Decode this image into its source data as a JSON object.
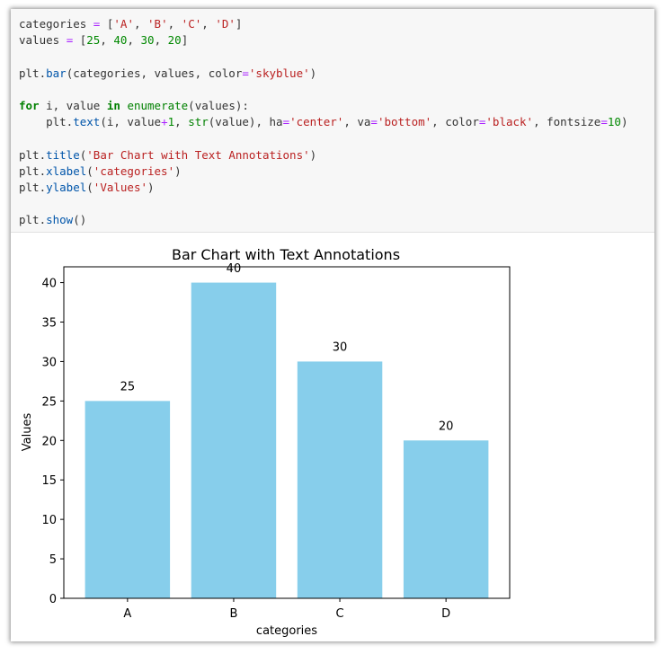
{
  "code": {
    "lines": [
      [
        {
          "t": "categories "
        },
        {
          "t": "=",
          "c": "op"
        },
        {
          "t": " ["
        },
        {
          "t": "'A'",
          "c": "str"
        },
        {
          "t": ", "
        },
        {
          "t": "'B'",
          "c": "str"
        },
        {
          "t": ", "
        },
        {
          "t": "'C'",
          "c": "str"
        },
        {
          "t": ", "
        },
        {
          "t": "'D'",
          "c": "str"
        },
        {
          "t": "]"
        }
      ],
      [
        {
          "t": "values "
        },
        {
          "t": "=",
          "c": "op"
        },
        {
          "t": " ["
        },
        {
          "t": "25",
          "c": "num"
        },
        {
          "t": ", "
        },
        {
          "t": "40",
          "c": "num"
        },
        {
          "t": ", "
        },
        {
          "t": "30",
          "c": "num"
        },
        {
          "t": ", "
        },
        {
          "t": "20",
          "c": "num"
        },
        {
          "t": "]"
        }
      ],
      [],
      [
        {
          "t": "plt."
        },
        {
          "t": "bar",
          "c": "fn"
        },
        {
          "t": "(categories, values, color"
        },
        {
          "t": "=",
          "c": "op"
        },
        {
          "t": "'skyblue'",
          "c": "str"
        },
        {
          "t": ")"
        }
      ],
      [],
      [
        {
          "t": "for",
          "c": "kw"
        },
        {
          "t": " i, value "
        },
        {
          "t": "in",
          "c": "kw"
        },
        {
          "t": " "
        },
        {
          "t": "enumerate",
          "c": "bi"
        },
        {
          "t": "(values):"
        }
      ],
      [
        {
          "t": "    plt."
        },
        {
          "t": "text",
          "c": "fn"
        },
        {
          "t": "(i, value"
        },
        {
          "t": "+",
          "c": "op"
        },
        {
          "t": "1",
          "c": "num"
        },
        {
          "t": ", "
        },
        {
          "t": "str",
          "c": "bi"
        },
        {
          "t": "(value), ha"
        },
        {
          "t": "=",
          "c": "op"
        },
        {
          "t": "'center'",
          "c": "str"
        },
        {
          "t": ", va"
        },
        {
          "t": "=",
          "c": "op"
        },
        {
          "t": "'bottom'",
          "c": "str"
        },
        {
          "t": ", color"
        },
        {
          "t": "=",
          "c": "op"
        },
        {
          "t": "'black'",
          "c": "str"
        },
        {
          "t": ", fontsize"
        },
        {
          "t": "=",
          "c": "op"
        },
        {
          "t": "10",
          "c": "num"
        },
        {
          "t": ")"
        }
      ],
      [],
      [
        {
          "t": "plt."
        },
        {
          "t": "title",
          "c": "fn"
        },
        {
          "t": "("
        },
        {
          "t": "'Bar Chart with Text Annotations'",
          "c": "str"
        },
        {
          "t": ")"
        }
      ],
      [
        {
          "t": "plt."
        },
        {
          "t": "xlabel",
          "c": "fn"
        },
        {
          "t": "("
        },
        {
          "t": "'categories'",
          "c": "str"
        },
        {
          "t": ")"
        }
      ],
      [
        {
          "t": "plt."
        },
        {
          "t": "ylabel",
          "c": "fn"
        },
        {
          "t": "("
        },
        {
          "t": "'Values'",
          "c": "str"
        },
        {
          "t": ")"
        }
      ],
      [],
      [
        {
          "t": "plt."
        },
        {
          "t": "show",
          "c": "fn"
        },
        {
          "t": "()"
        }
      ]
    ]
  },
  "chart_data": {
    "type": "bar",
    "title": "Bar Chart with Text Annotations",
    "xlabel": "categories",
    "ylabel": "Values",
    "categories": [
      "A",
      "B",
      "C",
      "D"
    ],
    "values": [
      25,
      40,
      30,
      20
    ],
    "data_labels": [
      "25",
      "40",
      "30",
      "20"
    ],
    "yticks": [
      0,
      5,
      10,
      15,
      20,
      25,
      30,
      35,
      40
    ],
    "ylim": [
      0,
      42
    ],
    "bar_color": "#87ceeb",
    "grid": false,
    "legend": "none"
  }
}
